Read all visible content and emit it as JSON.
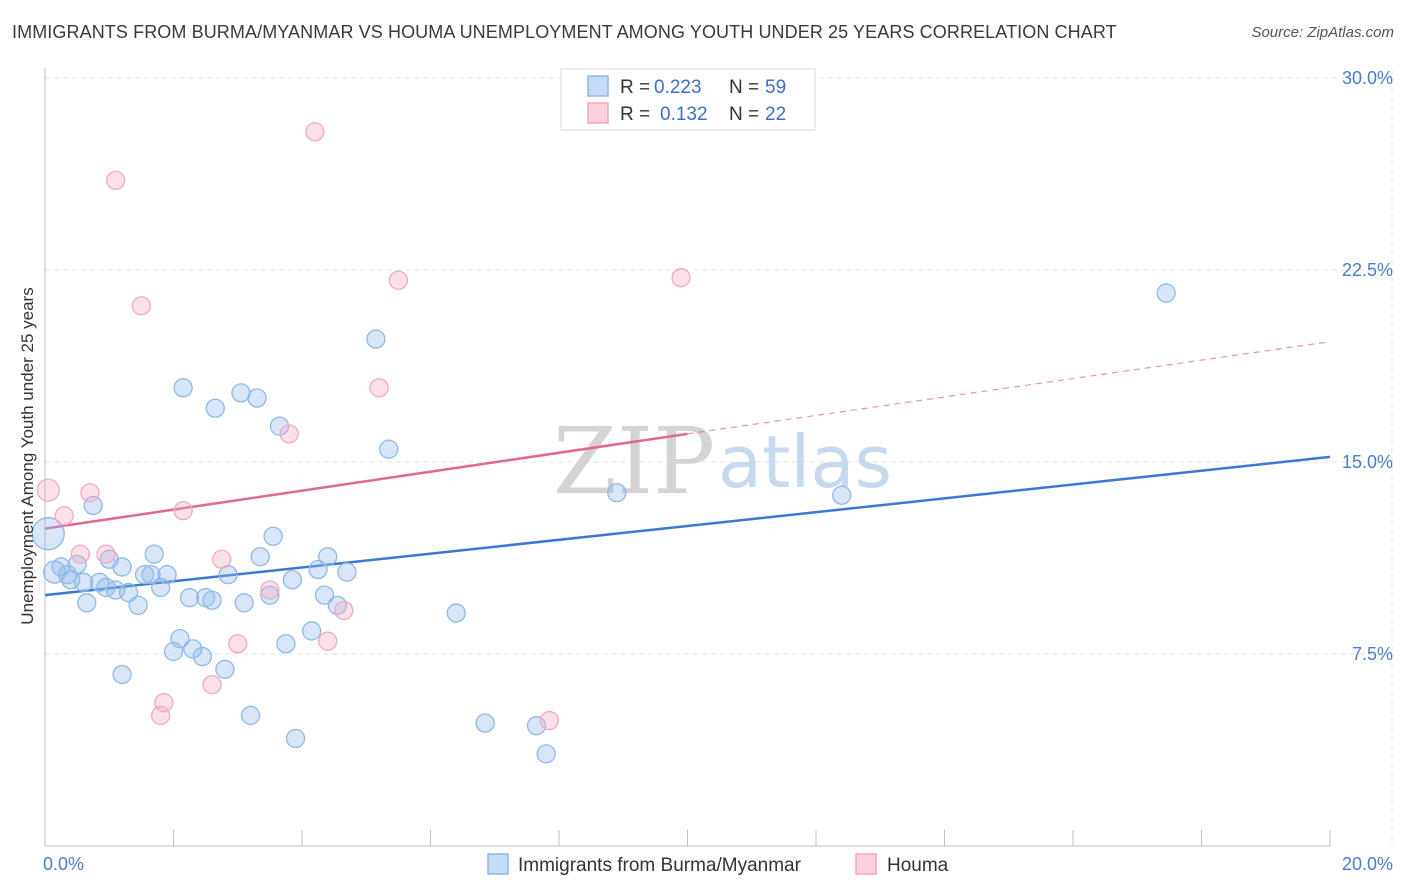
{
  "title": "IMMIGRANTS FROM BURMA/MYANMAR VS HOUMA UNEMPLOYMENT AMONG YOUTH UNDER 25 YEARS CORRELATION CHART",
  "source": "Source: ZipAtlas.com",
  "legend": {
    "r_label": "R =",
    "n_label": "N =",
    "series": [
      {
        "r": "0.223",
        "n": "59"
      },
      {
        "r": "0.132",
        "n": "22"
      }
    ]
  },
  "watermark": {
    "zip": "ZIP",
    "atlas": "atlas"
  },
  "chart_data": {
    "type": "scatter",
    "title": "IMMIGRANTS FROM BURMA/MYANMAR VS HOUMA UNEMPLOYMENT AMONG YOUTH UNDER 25 YEARS CORRELATION CHART",
    "xlabel": "",
    "ylabel": "Unemployment Among Youth under 25 years",
    "xlim": [
      0,
      20
    ],
    "ylim": [
      0,
      30
    ],
    "x_tick_labels": [
      "0.0%",
      "20.0%"
    ],
    "y_ticks": [
      7.5,
      15.0,
      22.5,
      30.0
    ],
    "y_tick_labels": [
      "7.5%",
      "15.0%",
      "22.5%",
      "30.0%"
    ],
    "grid": true,
    "series": [
      {
        "name": "Immigrants from Burma/Myanmar",
        "color": "#8fb8ea",
        "line_color": "#3b78d4",
        "trend": {
          "x0": 0,
          "y0": 9.8,
          "x1": 20,
          "y1": 15.2
        },
        "points": [
          [
            0.05,
            12.2,
            16
          ],
          [
            0.15,
            10.7,
            11
          ],
          [
            0.25,
            10.9,
            9
          ],
          [
            0.35,
            10.6,
            9
          ],
          [
            0.4,
            10.4,
            9
          ],
          [
            0.5,
            11.0,
            9
          ],
          [
            0.6,
            10.3,
            9
          ],
          [
            0.65,
            9.5,
            9
          ],
          [
            0.75,
            13.3,
            9
          ],
          [
            0.85,
            10.3,
            9
          ],
          [
            0.95,
            10.1,
            9
          ],
          [
            1.0,
            11.2,
            9
          ],
          [
            1.1,
            10.0,
            9
          ],
          [
            1.2,
            10.9,
            9
          ],
          [
            1.3,
            9.9,
            9
          ],
          [
            1.45,
            9.4,
            9
          ],
          [
            1.55,
            10.6,
            9
          ],
          [
            1.65,
            10.6,
            9
          ],
          [
            1.7,
            11.4,
            9
          ],
          [
            1.8,
            10.1,
            9
          ],
          [
            1.9,
            10.6,
            9
          ],
          [
            2.0,
            7.6,
            9
          ],
          [
            2.1,
            8.1,
            9
          ],
          [
            2.15,
            17.9,
            9
          ],
          [
            2.25,
            9.7,
            9
          ],
          [
            2.3,
            7.7,
            9
          ],
          [
            2.45,
            7.4,
            9
          ],
          [
            2.5,
            9.7,
            9
          ],
          [
            2.6,
            9.6,
            9
          ],
          [
            2.65,
            17.1,
            9
          ],
          [
            2.8,
            6.9,
            9
          ],
          [
            2.85,
            10.6,
            9
          ],
          [
            3.05,
            17.7,
            9
          ],
          [
            3.1,
            9.5,
            9
          ],
          [
            3.2,
            5.1,
            9
          ],
          [
            3.3,
            17.5,
            9
          ],
          [
            3.35,
            11.3,
            9
          ],
          [
            3.5,
            9.8,
            9
          ],
          [
            3.55,
            12.1,
            9
          ],
          [
            3.65,
            16.4,
            9
          ],
          [
            3.75,
            7.9,
            9
          ],
          [
            3.85,
            10.4,
            9
          ],
          [
            3.9,
            4.2,
            9
          ],
          [
            4.15,
            8.4,
            9
          ],
          [
            4.25,
            10.8,
            9
          ],
          [
            4.35,
            9.8,
            9
          ],
          [
            4.4,
            11.3,
            9
          ],
          [
            4.55,
            9.4,
            9
          ],
          [
            4.7,
            10.7,
            9
          ],
          [
            5.15,
            19.8,
            9
          ],
          [
            5.35,
            15.5,
            9
          ],
          [
            1.2,
            6.7,
            9
          ],
          [
            6.4,
            9.1,
            9
          ],
          [
            6.85,
            4.8,
            9
          ],
          [
            7.65,
            4.7,
            9
          ],
          [
            7.8,
            3.6,
            9
          ],
          [
            8.9,
            13.8,
            9
          ],
          [
            12.4,
            13.7,
            9
          ],
          [
            17.45,
            21.6,
            9
          ]
        ]
      },
      {
        "name": "Houma",
        "color": "#f3a9bf",
        "line_color": "#e0688f",
        "trend": {
          "x0": 0,
          "y0": 12.4,
          "x1": 10,
          "y1": 16.1
        },
        "trend_ext": {
          "x0": 10,
          "y0": 16.1,
          "x1": 20,
          "y1": 19.7
        },
        "points": [
          [
            0.05,
            13.9,
            11
          ],
          [
            0.3,
            12.9,
            9
          ],
          [
            0.55,
            11.4,
            9
          ],
          [
            0.7,
            13.8,
            9
          ],
          [
            0.95,
            11.4,
            9
          ],
          [
            1.1,
            26.0,
            9
          ],
          [
            1.5,
            21.1,
            9
          ],
          [
            1.8,
            5.1,
            9
          ],
          [
            1.85,
            5.6,
            9
          ],
          [
            2.15,
            13.1,
            9
          ],
          [
            2.6,
            6.3,
            9
          ],
          [
            2.75,
            11.2,
            9
          ],
          [
            3.0,
            7.9,
            9
          ],
          [
            3.5,
            10.0,
            9
          ],
          [
            3.8,
            16.1,
            9
          ],
          [
            4.2,
            27.9,
            9
          ],
          [
            4.4,
            8.0,
            9
          ],
          [
            4.65,
            9.2,
            9
          ],
          [
            5.2,
            17.9,
            9
          ],
          [
            5.5,
            22.1,
            9
          ],
          [
            7.85,
            4.9,
            9
          ],
          [
            9.9,
            22.2,
            9
          ]
        ]
      }
    ]
  }
}
